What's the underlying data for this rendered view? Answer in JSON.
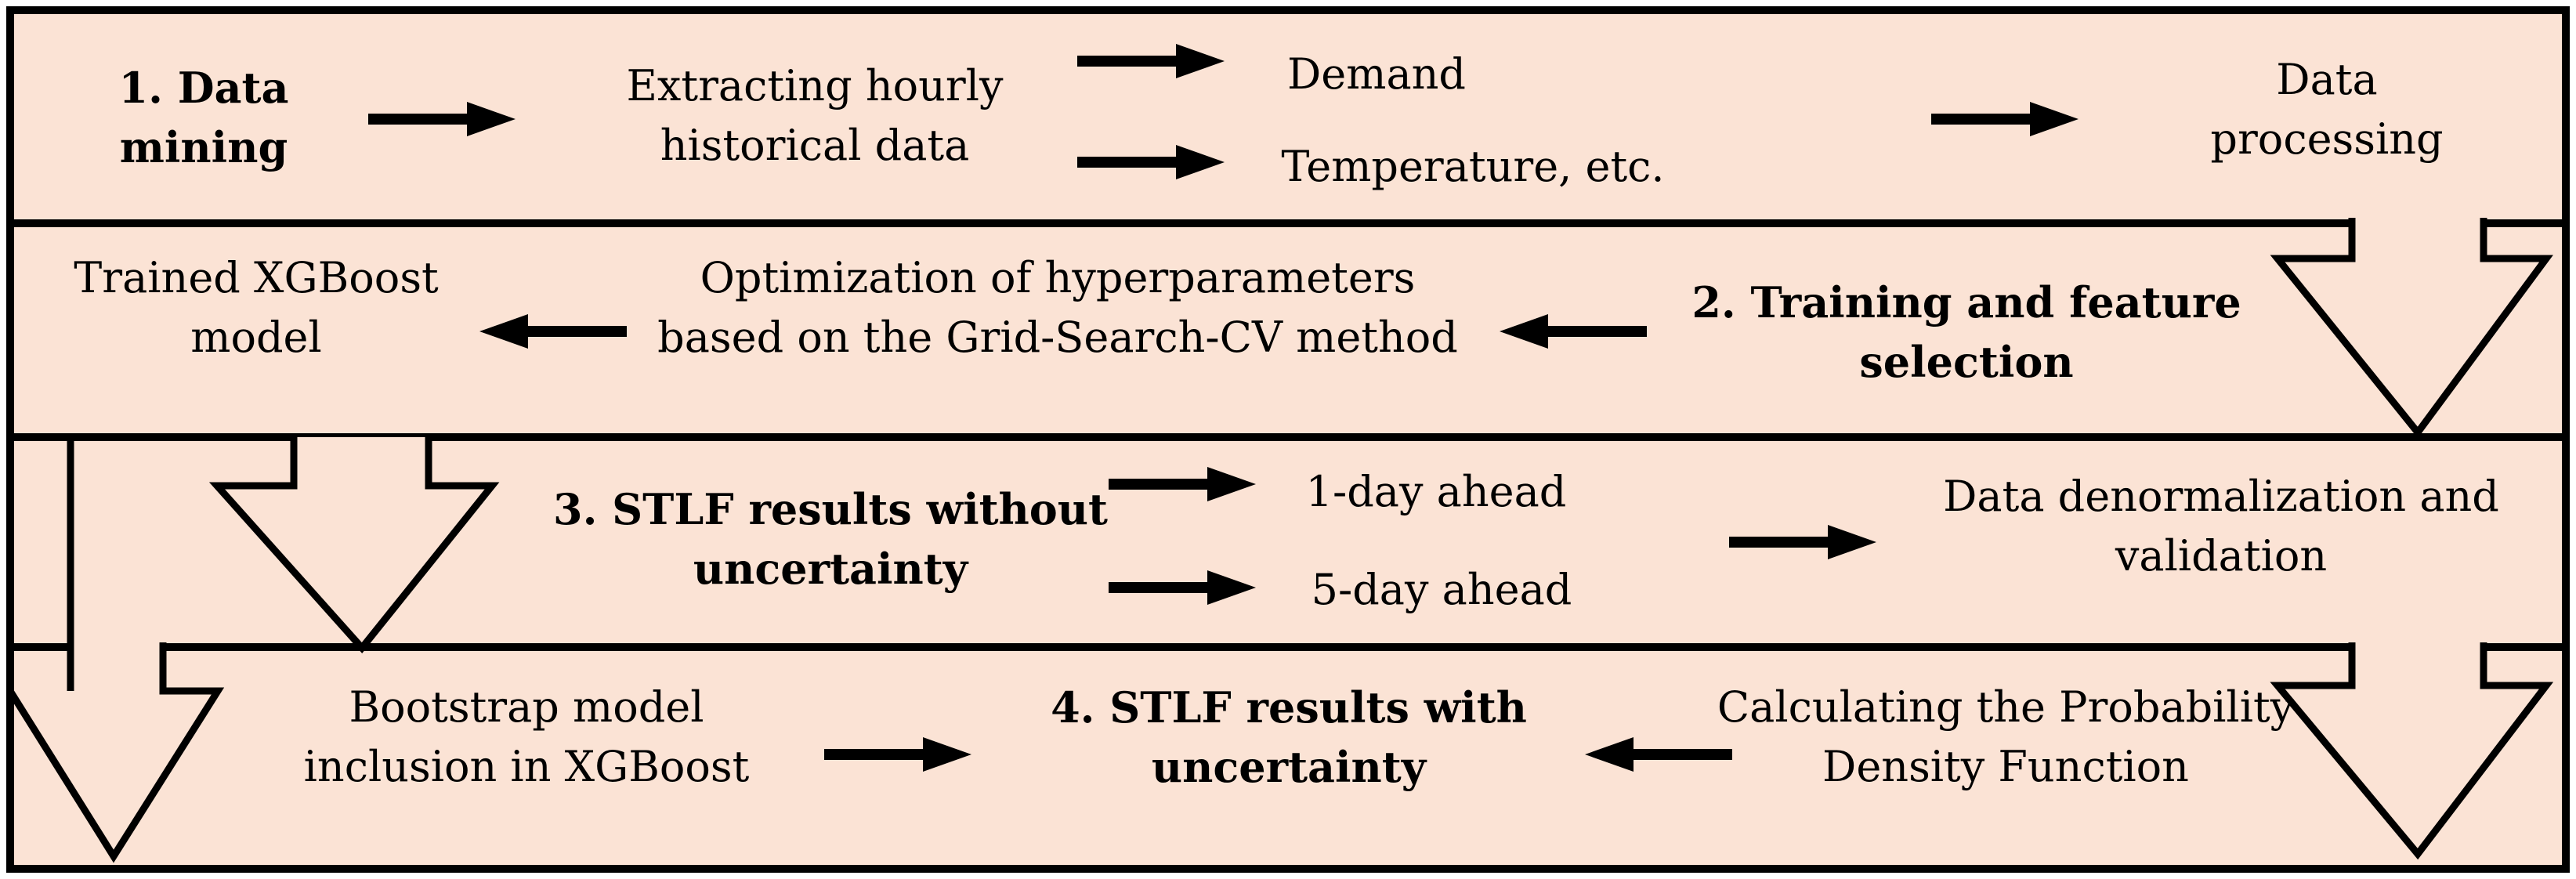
{
  "figure": {
    "type": "flowchart",
    "title": "STLF methodology flowchart",
    "background_color": "#fbe3d5",
    "line_color": "#000000",
    "text_color": "#000000"
  },
  "rows": [
    {
      "id": "row1",
      "nodes": [
        "step1",
        "extract",
        "demand",
        "temperature",
        "data-processing"
      ]
    },
    {
      "id": "row2",
      "nodes": [
        "step2",
        "optimization",
        "trained-model"
      ]
    },
    {
      "id": "row3",
      "nodes": [
        "step3",
        "one-day",
        "five-day",
        "denormalization"
      ]
    },
    {
      "id": "row4",
      "nodes": [
        "bootstrap",
        "step4",
        "pdf"
      ]
    }
  ],
  "nodes": {
    "step1": {
      "lines": [
        "1. Data",
        "mining"
      ],
      "bold": true
    },
    "extract": {
      "lines": [
        "Extracting hourly",
        "historical data"
      ],
      "bold": false
    },
    "demand": {
      "lines": [
        "Demand"
      ],
      "bold": false
    },
    "temperature": {
      "lines": [
        "Temperature, etc."
      ],
      "bold": false
    },
    "data-processing": {
      "lines": [
        "Data",
        "processing"
      ],
      "bold": false
    },
    "trained-model": {
      "lines": [
        "Trained XGBoost",
        "model"
      ],
      "bold": false
    },
    "optimization": {
      "lines": [
        "Optimization of hyperparameters",
        "based on the Grid-Search-CV method"
      ],
      "bold": false
    },
    "step2": {
      "lines": [
        "2. Training and feature",
        "selection"
      ],
      "bold": true
    },
    "step3": {
      "lines": [
        "3. STLF results without",
        "uncertainty"
      ],
      "bold": true
    },
    "one-day": {
      "lines": [
        "1-day ahead"
      ],
      "bold": false
    },
    "five-day": {
      "lines": [
        "5-day ahead"
      ],
      "bold": false
    },
    "denormalization": {
      "lines": [
        "Data denormalization and",
        "validation"
      ],
      "bold": false
    },
    "bootstrap": {
      "lines": [
        "Bootstrap model",
        "inclusion in XGBoost"
      ],
      "bold": false
    },
    "step4": {
      "lines": [
        "4. STLF results with",
        "uncertainty"
      ],
      "bold": true
    },
    "pdf": {
      "lines": [
        "Calculating the Probability",
        "Density Function"
      ],
      "bold": false
    }
  },
  "small_arrows": [
    {
      "id": "a1",
      "from": "step1",
      "to": "extract",
      "direction": "right"
    },
    {
      "id": "a2",
      "from": "extract",
      "to": "demand",
      "direction": "right"
    },
    {
      "id": "a3",
      "from": "extract",
      "to": "temperature",
      "direction": "right"
    },
    {
      "id": "a4",
      "from": "temperature",
      "to": "data-processing",
      "direction": "right"
    },
    {
      "id": "a5",
      "from": "optimization",
      "to": "trained-model",
      "direction": "left"
    },
    {
      "id": "a6",
      "from": "step2",
      "to": "optimization",
      "direction": "left"
    },
    {
      "id": "a7",
      "from": "step3",
      "to": "one-day",
      "direction": "right"
    },
    {
      "id": "a8",
      "from": "step3",
      "to": "five-day",
      "direction": "right"
    },
    {
      "id": "a9",
      "from": "five-day",
      "to": "denormalization",
      "direction": "right"
    },
    {
      "id": "a10",
      "from": "bootstrap",
      "to": "step4",
      "direction": "right"
    },
    {
      "id": "a11",
      "from": "pdf",
      "to": "step4",
      "direction": "left"
    }
  ],
  "big_arrows": [
    {
      "id": "big-right-top",
      "from": "data-processing",
      "to": "row2",
      "direction": "down"
    },
    {
      "id": "big-left-middle",
      "from": "trained-model",
      "to": "row3",
      "direction": "down"
    },
    {
      "id": "big-far-left",
      "from": "trained-model",
      "to": "row4",
      "direction": "down"
    },
    {
      "id": "big-right-bottom",
      "from": "denormalization",
      "to": "row4",
      "direction": "down"
    }
  ]
}
